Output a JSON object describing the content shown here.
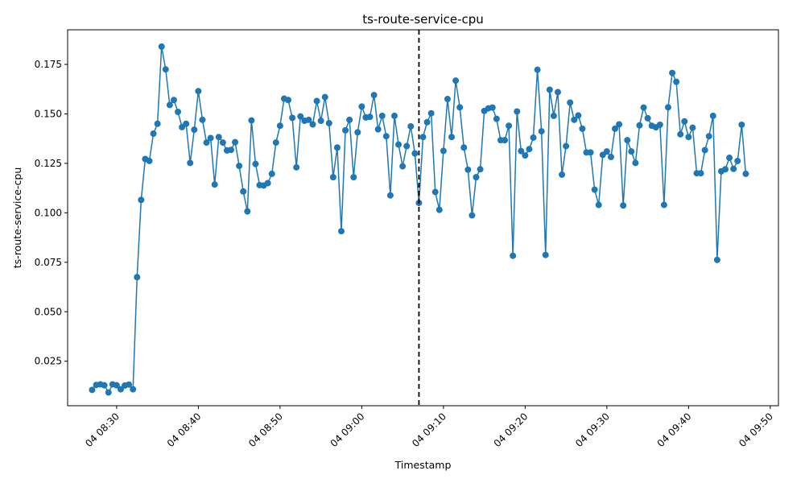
{
  "chart_data": {
    "type": "line",
    "title": "ts-route-service-cpu",
    "xlabel": "Timestamp",
    "ylabel": "ts-route-service-cpu",
    "x_axis": {
      "unit": "minute",
      "range": [
        "04 08:24",
        "04 09:51"
      ],
      "ticks": [
        {
          "at": "04 08:30",
          "label": "04 08:30"
        },
        {
          "at": "04 08:40",
          "label": "04 08:40"
        },
        {
          "at": "04 08:50",
          "label": "04 08:50"
        },
        {
          "at": "04 09:00",
          "label": "04 09:00"
        },
        {
          "at": "04 09:10",
          "label": "04 09:10"
        },
        {
          "at": "04 09:20",
          "label": "04 09:20"
        },
        {
          "at": "04 09:30",
          "label": "04 09:30"
        },
        {
          "at": "04 09:40",
          "label": "04 09:40"
        },
        {
          "at": "04 09:50",
          "label": "04 09:50"
        }
      ]
    },
    "ylim": [
      0.0025,
      0.1925
    ],
    "yticks": [
      {
        "value": 0.025,
        "label": "0.025"
      },
      {
        "value": 0.05,
        "label": "0.050"
      },
      {
        "value": 0.075,
        "label": "0.075"
      },
      {
        "value": 0.1,
        "label": "0.100"
      },
      {
        "value": 0.125,
        "label": "0.125"
      },
      {
        "value": 0.15,
        "label": "0.150"
      },
      {
        "value": 0.175,
        "label": "0.175"
      }
    ],
    "grid": false,
    "series_color": "#1f77b4",
    "marker": "circle",
    "vline": {
      "x": "04 09:07",
      "style": "dashed",
      "color": "#000000"
    },
    "start": "04 08:27",
    "step_minutes": 0.5,
    "values": [
      0.0105,
      0.013,
      0.0133,
      0.0128,
      0.0092,
      0.0133,
      0.0128,
      0.0108,
      0.0127,
      0.0132,
      0.0108,
      0.0675,
      0.1065,
      0.1272,
      0.1262,
      0.14,
      0.145,
      0.184,
      0.1725,
      0.1545,
      0.157,
      0.151,
      0.1433,
      0.145,
      0.1252,
      0.142,
      0.1615,
      0.147,
      0.1355,
      0.1378,
      0.1143,
      0.1383,
      0.1355,
      0.1315,
      0.1318,
      0.1357,
      0.1237,
      0.1108,
      0.1007,
      0.1467,
      0.1247,
      0.114,
      0.1138,
      0.115,
      0.1197,
      0.1355,
      0.144,
      0.1577,
      0.157,
      0.148,
      0.123,
      0.1487,
      0.1465,
      0.147,
      0.1447,
      0.1565,
      0.1465,
      0.1585,
      0.1453,
      0.118,
      0.133,
      0.0907,
      0.1417,
      0.147,
      0.118,
      0.1407,
      0.1537,
      0.1482,
      0.1485,
      0.1595,
      0.1422,
      0.149,
      0.1387,
      0.1088,
      0.149,
      0.1345,
      0.1235,
      0.1337,
      0.1437,
      0.13,
      0.105,
      0.1383,
      0.1458,
      0.1503,
      0.1105,
      0.1015,
      0.1313,
      0.1575,
      0.1383,
      0.1668,
      0.1533,
      0.133,
      0.1218,
      0.0987,
      0.118,
      0.122,
      0.1515,
      0.1528,
      0.1532,
      0.1475,
      0.1367,
      0.1367,
      0.144,
      0.0783,
      0.1512,
      0.1312,
      0.129,
      0.1322,
      0.138,
      0.1723,
      0.1412,
      0.0787,
      0.1622,
      0.149,
      0.161,
      0.1193,
      0.1337,
      0.1557,
      0.147,
      0.1492,
      0.1425,
      0.1305,
      0.1305,
      0.1117,
      0.104,
      0.1293,
      0.131,
      0.1282,
      0.1425,
      0.1447,
      0.1037,
      0.1367,
      0.131,
      0.1252,
      0.1442,
      0.1532,
      0.1478,
      0.144,
      0.1432,
      0.1445,
      0.104,
      0.1533,
      0.1707,
      0.1662,
      0.1397,
      0.1462,
      0.1383,
      0.143,
      0.12,
      0.12,
      0.1317,
      0.1387,
      0.149,
      0.0762,
      0.121,
      0.122,
      0.1278,
      0.1222,
      0.1262,
      0.1445,
      0.1197
    ]
  }
}
